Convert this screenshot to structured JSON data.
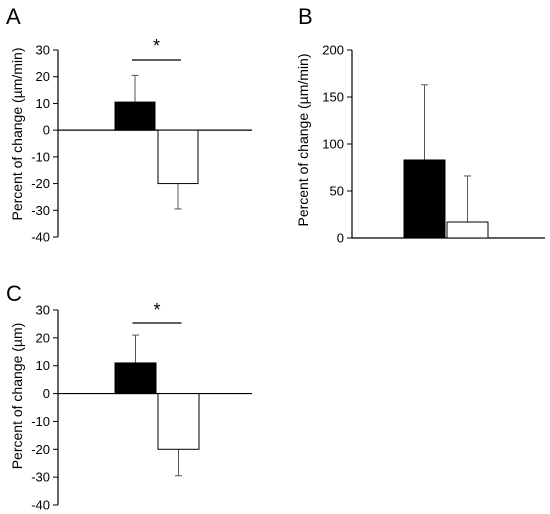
{
  "chart_data": [
    {
      "panel": "A",
      "type": "bar",
      "ylabel": "Percent of change (µm/min)",
      "ylim": [
        -40,
        30
      ],
      "yticks": [
        30,
        20,
        10,
        0,
        -10,
        -20,
        -30,
        -40
      ],
      "series": [
        {
          "fill": "#000000",
          "value": 10.5,
          "error": 10
        },
        {
          "fill": "#ffffff",
          "value": -20,
          "error": 9.5
        }
      ],
      "significance": "*"
    },
    {
      "panel": "B",
      "type": "bar",
      "ylabel": "Percent of change (µm/min)",
      "ylim": [
        0,
        200
      ],
      "yticks": [
        200,
        150,
        100,
        50,
        0
      ],
      "series": [
        {
          "fill": "#000000",
          "value": 83,
          "error": 80
        },
        {
          "fill": "#ffffff",
          "value": 17,
          "error": 49
        }
      ]
    },
    {
      "panel": "C",
      "type": "bar",
      "ylabel": "Percent of change (µm)",
      "ylim": [
        -40,
        30
      ],
      "yticks": [
        30,
        20,
        10,
        0,
        -10,
        -20,
        -30,
        -40
      ],
      "series": [
        {
          "fill": "#000000",
          "value": 11,
          "error": 10
        },
        {
          "fill": "#ffffff",
          "value": -20,
          "error": 9.5
        }
      ],
      "significance": "*"
    }
  ]
}
